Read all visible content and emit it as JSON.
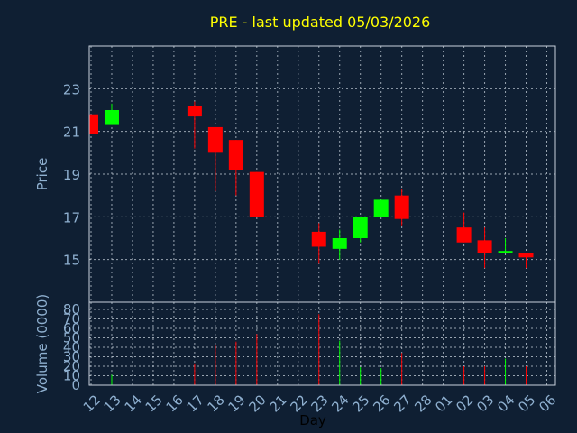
{
  "chart_data": {
    "type": "candlestick",
    "title": "PRE - last updated 05/03/2026",
    "xlabel": "Day",
    "price_panel": {
      "ylabel": "Price",
      "yticks": [
        15,
        17,
        19,
        21,
        23
      ],
      "ylim": [
        13,
        25
      ],
      "grid": true
    },
    "volume_panel": {
      "ylabel": "Volume (0000)",
      "yticks": [
        0,
        10,
        20,
        30,
        40,
        50,
        60,
        70,
        80
      ],
      "ylim": [
        0,
        80
      ],
      "grid": true
    },
    "days": [
      "12",
      "13",
      "14",
      "15",
      "16",
      "17",
      "18",
      "19",
      "20",
      "21",
      "22",
      "23",
      "24",
      "25",
      "26",
      "27",
      "28",
      "01",
      "02",
      "03",
      "04",
      "05",
      "06"
    ],
    "candles": [
      {
        "day": "12",
        "open": 21.8,
        "high": 21.8,
        "low": 20.9,
        "close": 20.9
      },
      {
        "day": "13",
        "open": 21.3,
        "high": 22.3,
        "low": 21.3,
        "close": 22.0
      },
      {
        "day": "17",
        "open": 22.2,
        "high": 22.4,
        "low": 20.2,
        "close": 21.7
      },
      {
        "day": "18",
        "open": 21.2,
        "high": 21.2,
        "low": 18.2,
        "close": 20.0
      },
      {
        "day": "19",
        "open": 20.6,
        "high": 20.6,
        "low": 18.0,
        "close": 19.2
      },
      {
        "day": "20",
        "open": 19.1,
        "high": 19.1,
        "low": 17.0,
        "close": 17.0
      },
      {
        "day": "23",
        "open": 16.3,
        "high": 16.7,
        "low": 14.8,
        "close": 15.6
      },
      {
        "day": "24",
        "open": 15.5,
        "high": 16.4,
        "low": 15.0,
        "close": 16.0
      },
      {
        "day": "25",
        "open": 16.0,
        "high": 17.0,
        "low": 15.8,
        "close": 17.0
      },
      {
        "day": "26",
        "open": 17.0,
        "high": 17.8,
        "low": 17.0,
        "close": 17.8
      },
      {
        "day": "27",
        "open": 18.0,
        "high": 18.3,
        "low": 16.6,
        "close": 16.9
      },
      {
        "day": "02",
        "open": 16.5,
        "high": 17.2,
        "low": 15.8,
        "close": 15.8
      },
      {
        "day": "03",
        "open": 15.9,
        "high": 16.5,
        "low": 14.6,
        "close": 15.3
      },
      {
        "day": "04",
        "open": 15.3,
        "high": 16.0,
        "low": 15.3,
        "close": 15.4
      },
      {
        "day": "05",
        "open": 15.3,
        "high": 15.3,
        "low": 14.6,
        "close": 15.1
      }
    ],
    "volume": [
      {
        "day": "13",
        "value": 11,
        "color": "#00ff00"
      },
      {
        "day": "17",
        "value": 23,
        "color": "#ff0000"
      },
      {
        "day": "18",
        "value": 42,
        "color": "#ff0000"
      },
      {
        "day": "19",
        "value": 46,
        "color": "#ff0000"
      },
      {
        "day": "20",
        "value": 54,
        "color": "#ff0000"
      },
      {
        "day": "23",
        "value": 75,
        "color": "#ff0000"
      },
      {
        "day": "24",
        "value": 47,
        "color": "#00ff00"
      },
      {
        "day": "25",
        "value": 19,
        "color": "#00ff00"
      },
      {
        "day": "26",
        "value": 18,
        "color": "#00ff00"
      },
      {
        "day": "27",
        "value": 34,
        "color": "#ff0000"
      },
      {
        "day": "02",
        "value": 20,
        "color": "#ff0000"
      },
      {
        "day": "03",
        "value": 20,
        "color": "#ff0000"
      },
      {
        "day": "04",
        "value": 28,
        "color": "#00ff00"
      },
      {
        "day": "05",
        "value": 20,
        "color": "#ff0000"
      }
    ],
    "colors": {
      "up": "#00ff00",
      "down": "#ff0000",
      "background": "#0f1f33"
    }
  }
}
